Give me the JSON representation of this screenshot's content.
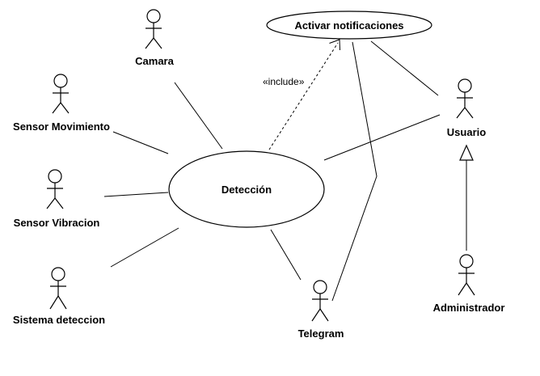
{
  "diagram": {
    "actors": {
      "camara": "Camara",
      "sensor_movimiento": "Sensor Movimiento",
      "sensor_vibracion": "Sensor Vibracion",
      "sistema_deteccion": "Sistema deteccion",
      "telegram": "Telegram",
      "usuario": "Usuario",
      "administrador": "Administrador"
    },
    "use_cases": {
      "deteccion": "Detección",
      "activar_notificaciones": "Activar notificaciones"
    },
    "relations": {
      "include_label": "«include»"
    }
  }
}
